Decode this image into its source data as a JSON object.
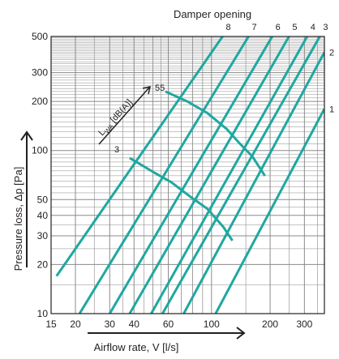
{
  "chart_data": {
    "type": "line",
    "title": "Damper opening",
    "xlabel": "Airflow rate, V [l/s]",
    "ylabel": "Pressure loss, Δp [Pa]",
    "x_scale": "log",
    "y_scale": "log",
    "xlim": [
      15,
      380
    ],
    "ylim": [
      10,
      500
    ],
    "x_ticks": [
      15,
      20,
      30,
      40,
      60,
      100,
      200,
      300
    ],
    "y_ticks": [
      10,
      20,
      30,
      40,
      50,
      100,
      200,
      300,
      500
    ],
    "grid": true,
    "colors": {
      "lines": "#1fa8a0",
      "axes": "#231f20",
      "grid": "#8a8a8a"
    },
    "series": [
      {
        "name": "8",
        "x": [
          16,
          114
        ],
        "y": [
          17,
          500
        ]
      },
      {
        "name": "7",
        "x": [
          21,
          155
        ],
        "y": [
          10,
          500
        ]
      },
      {
        "name": "6",
        "x": [
          30,
          205
        ],
        "y": [
          10,
          500
        ]
      },
      {
        "name": "5",
        "x": [
          38,
          250
        ],
        "y": [
          10,
          500
        ]
      },
      {
        "name": "4",
        "x": [
          49,
          310
        ],
        "y": [
          10,
          500
        ]
      },
      {
        "name": "3",
        "x": [
          56,
          360
        ],
        "y": [
          10,
          500
        ]
      },
      {
        "name": "2",
        "x": [
          72,
          380
        ],
        "y": [
          10,
          400
        ]
      },
      {
        "name": "1",
        "x": [
          105,
          380
        ],
        "y": [
          10,
          180
        ]
      }
    ],
    "sound_curves": [
      {
        "label": "55",
        "x": [
          58,
          75,
          95,
          120,
          140,
          162,
          188
        ],
        "y": [
          230,
          200,
          170,
          135,
          110,
          92,
          70
        ]
      },
      {
        "label": "3",
        "x": [
          38,
          50,
          62,
          78,
          95,
          115,
          128
        ],
        "y": [
          90,
          74,
          64,
          52,
          44,
          34,
          28
        ]
      }
    ],
    "annotations": {
      "sound_axis_label": "L",
      "sound_axis_sub": "WA",
      "sound_axis_unit": " [dB(A)]",
      "sound_top": "55",
      "sound_bottom": "3"
    }
  }
}
